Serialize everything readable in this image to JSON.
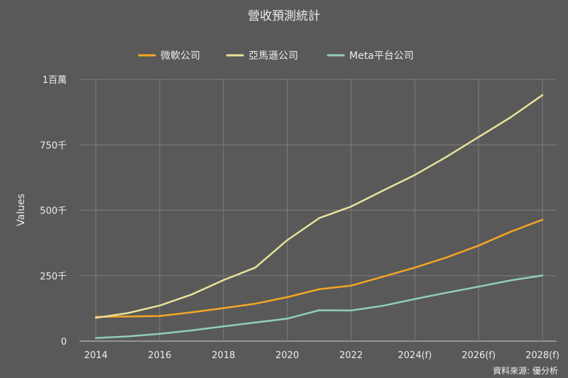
{
  "chart_data": {
    "type": "line",
    "title": "營收預測統計",
    "ylabel": "Values",
    "xlabel": "",
    "ylim": [
      0,
      1000000
    ],
    "yticks": [
      {
        "value": 0,
        "label": "0"
      },
      {
        "value": 250000,
        "label": "250千"
      },
      {
        "value": 500000,
        "label": "500千"
      },
      {
        "value": 750000,
        "label": "750千"
      },
      {
        "value": 1000000,
        "label": "1百萬"
      }
    ],
    "x": [
      2014,
      2015,
      2016,
      2017,
      2018,
      2019,
      2020,
      2021,
      2022,
      2023,
      2024,
      2025,
      2026,
      2027,
      2028
    ],
    "xticks": [
      {
        "value": 2014,
        "label": "2014"
      },
      {
        "value": 2016,
        "label": "2016"
      },
      {
        "value": 2018,
        "label": "2018"
      },
      {
        "value": 2020,
        "label": "2020"
      },
      {
        "value": 2022,
        "label": "2022"
      },
      {
        "value": 2024,
        "label": "2024(f)"
      },
      {
        "value": 2026,
        "label": "2026(f)"
      },
      {
        "value": 2028,
        "label": "2028(f)"
      }
    ],
    "grid": true,
    "legend": "top-center",
    "series": [
      {
        "name": "微軟公司",
        "color": "#f5a623",
        "values": [
          93000,
          94000,
          96000,
          110000,
          126000,
          143000,
          168000,
          198000,
          212000,
          246000,
          281000,
          320000,
          365000,
          418000,
          464000
        ]
      },
      {
        "name": "亞馬遜公司",
        "color": "#e9e29a",
        "values": [
          89000,
          107000,
          136000,
          178000,
          233000,
          281000,
          386000,
          470000,
          514000,
          575000,
          635000,
          705000,
          780000,
          855000,
          940000
        ]
      },
      {
        "name": "Meta平台公司",
        "color": "#92cdbf",
        "values": [
          12000,
          18000,
          28000,
          41000,
          56000,
          71000,
          86000,
          118000,
          117000,
          135000,
          161000,
          185000,
          208000,
          232000,
          251000
        ]
      }
    ]
  },
  "source_note": "資料來源: 優分析"
}
